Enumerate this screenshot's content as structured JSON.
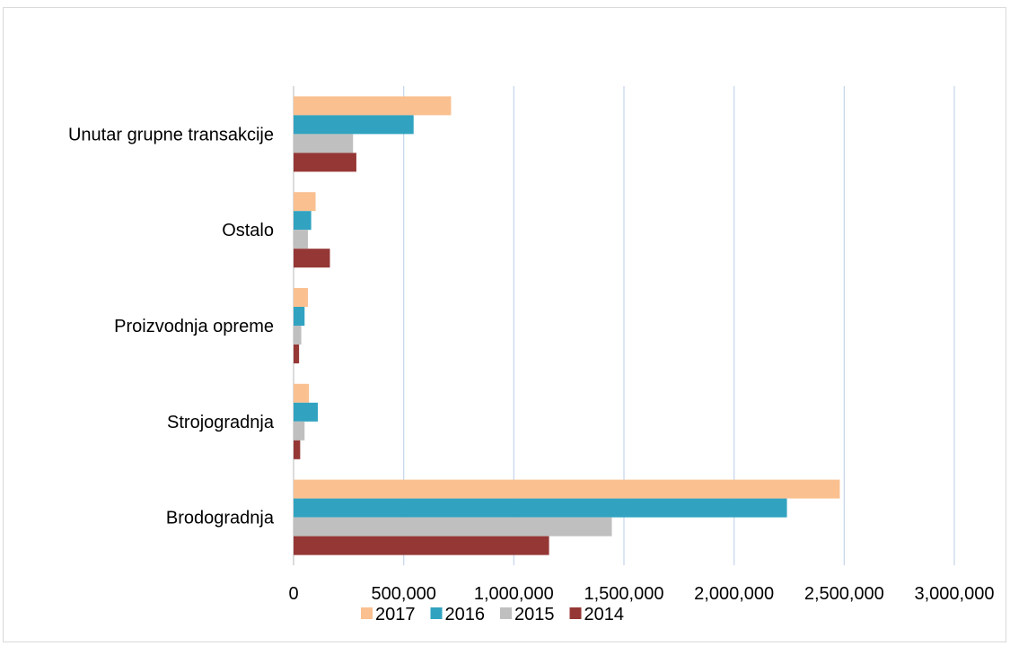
{
  "chart_data": {
    "type": "bar",
    "orientation": "horizontal",
    "title": "",
    "xlabel": "",
    "ylabel": "",
    "categories": [
      "Brodogradnja",
      "Strojogradnja",
      "Proizvodnja opreme",
      "Ostalo",
      "Unutar grupne transakcije"
    ],
    "series": [
      {
        "name": "2017",
        "color": "#FAC090",
        "values": [
          2480000,
          70000,
          65000,
          100000,
          715000
        ]
      },
      {
        "name": "2016",
        "color": "#31A3C0",
        "values": [
          2240000,
          110000,
          50000,
          80000,
          545000
        ]
      },
      {
        "name": "2015",
        "color": "#BFBFBF",
        "values": [
          1445000,
          50000,
          35000,
          65000,
          270000
        ]
      },
      {
        "name": "2014",
        "color": "#953735",
        "values": [
          1160000,
          30000,
          25000,
          165000,
          285000
        ]
      }
    ],
    "xlim": [
      0,
      3000000
    ],
    "xticks": [
      "0",
      "500,000",
      "1,000,000",
      "1,500,000",
      "2,000,000",
      "2,500,000",
      "3,000,000"
    ],
    "grid": true,
    "legend_position": "bottom",
    "legend_order": [
      "2017",
      "2016",
      "2015",
      "2014"
    ]
  }
}
